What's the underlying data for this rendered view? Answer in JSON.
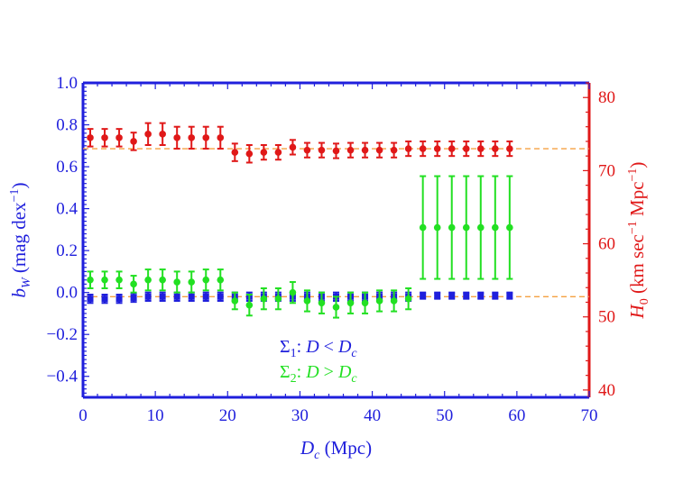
{
  "chart_data": {
    "type": "scatter",
    "xlabel": "D_c (Mpc)",
    "xlabel_parts": {
      "var": "D",
      "sub": "c",
      "rest": " (Mpc)"
    },
    "ylabel_left": "b_W (mag dex^-1)",
    "ylabel_left_parts": {
      "var": "b",
      "sub": "W",
      "rest": " (mag dex",
      "sup": "−1",
      "close": ")"
    },
    "ylabel_right": "H_0 (km sec^-1 Mpc^-1)",
    "ylabel_right_parts": {
      "var": "H",
      "sub": "0",
      "rest1": " (km sec",
      "sup1": "−1",
      "rest2": " Mpc",
      "sup2": "−1",
      "close": ")"
    },
    "xlim": [
      0,
      70
    ],
    "ylim_left": [
      -0.5,
      1.0
    ],
    "ylim_right": [
      39,
      82
    ],
    "x_ticks": [
      0,
      10,
      20,
      30,
      40,
      50,
      60,
      70
    ],
    "x_tick_labels": [
      "0",
      "10",
      "20",
      "30",
      "40",
      "50",
      "60",
      "70"
    ],
    "y_left_ticks": [
      -0.4,
      -0.2,
      0.0,
      0.2,
      0.4,
      0.6,
      0.8,
      1.0
    ],
    "y_left_tick_labels": [
      "−0.4",
      "−0.2",
      "0.0",
      "0.2",
      "0.4",
      "0.6",
      "0.8",
      "1.0"
    ],
    "y_right_ticks": [
      40,
      50,
      60,
      70,
      80
    ],
    "y_right_tick_labels": [
      "40",
      "50",
      "60",
      "70",
      "80"
    ],
    "grid": false,
    "legend_position": "bottom-center",
    "legend": [
      {
        "symbol": "Σ",
        "sub": "1",
        "rest": ": D < D",
        "rest_sub": "c",
        "color": "#1f1fdc"
      },
      {
        "symbol": "Σ",
        "sub": "2",
        "rest": ": D > D",
        "rest_sub": "c",
        "color": "#22e022"
      }
    ],
    "reference_lines": [
      {
        "axis": "left",
        "y": -0.02,
        "color": "#f5a040",
        "dashed": true
      },
      {
        "axis": "right",
        "y": 73.0,
        "color": "#f5a040",
        "dashed": true
      }
    ],
    "series": [
      {
        "name": "Σ₁: D < D_c",
        "axis": "left",
        "color": "#1f1fdc",
        "marker": "square",
        "x": [
          1,
          3,
          5,
          7,
          9,
          11,
          13,
          15,
          17,
          19,
          21,
          23,
          25,
          27,
          29,
          31,
          33,
          35,
          37,
          39,
          41,
          43,
          45,
          47,
          49,
          51,
          53,
          55,
          57,
          59
        ],
        "y": [
          -0.03,
          -0.03,
          -0.03,
          -0.025,
          -0.02,
          -0.02,
          -0.02,
          -0.02,
          -0.02,
          -0.02,
          -0.02,
          -0.02,
          -0.02,
          -0.02,
          -0.02,
          -0.02,
          -0.02,
          -0.02,
          -0.02,
          -0.02,
          -0.02,
          -0.02,
          -0.02,
          -0.015,
          -0.015,
          -0.015,
          -0.015,
          -0.015,
          -0.015,
          -0.015
        ],
        "err": [
          0.02,
          0.02,
          0.02,
          0.02,
          0.02,
          0.02,
          0.02,
          0.02,
          0.02,
          0.02,
          0.02,
          0.02,
          0.02,
          0.02,
          0.02,
          0.02,
          0.02,
          0.02,
          0.02,
          0.02,
          0.02,
          0.02,
          0.02,
          0.015,
          0.015,
          0.015,
          0.015,
          0.015,
          0.015,
          0.015
        ]
      },
      {
        "name": "Σ₂: D > D_c",
        "axis": "left",
        "color": "#22e022",
        "marker": "circle",
        "x": [
          1,
          3,
          5,
          7,
          9,
          11,
          13,
          15,
          17,
          19,
          21,
          23,
          25,
          27,
          29,
          31,
          33,
          35,
          37,
          39,
          41,
          43,
          45,
          47,
          49,
          51,
          53,
          55,
          57,
          59
        ],
        "y": [
          0.06,
          0.06,
          0.06,
          0.04,
          0.06,
          0.06,
          0.05,
          0.05,
          0.06,
          0.06,
          -0.04,
          -0.06,
          -0.03,
          -0.03,
          0.0,
          -0.04,
          -0.05,
          -0.07,
          -0.05,
          -0.05,
          -0.04,
          -0.04,
          -0.03,
          0.31,
          0.31,
          0.31,
          0.31,
          0.31,
          0.31,
          0.31
        ],
        "err": [
          0.04,
          0.04,
          0.04,
          0.04,
          0.05,
          0.05,
          0.05,
          0.05,
          0.05,
          0.05,
          0.04,
          0.05,
          0.05,
          0.05,
          0.05,
          0.05,
          0.05,
          0.05,
          0.05,
          0.05,
          0.05,
          0.05,
          0.05,
          0.245,
          0.245,
          0.245,
          0.245,
          0.245,
          0.245,
          0.245
        ]
      },
      {
        "name": "H_0",
        "axis": "right",
        "color": "#e01818",
        "marker": "circle",
        "x": [
          1,
          3,
          5,
          7,
          9,
          11,
          13,
          15,
          17,
          19,
          21,
          23,
          25,
          27,
          29,
          31,
          33,
          35,
          37,
          39,
          41,
          43,
          45,
          47,
          49,
          51,
          53,
          55,
          57,
          59
        ],
        "y": [
          74.5,
          74.5,
          74.5,
          74.0,
          75.0,
          75.0,
          74.5,
          74.5,
          74.5,
          74.5,
          72.5,
          72.3,
          72.5,
          72.5,
          73.2,
          72.8,
          72.8,
          72.7,
          72.8,
          72.8,
          72.8,
          72.8,
          73.0,
          73.0,
          73.0,
          73.0,
          73.0,
          73.0,
          73.0,
          73.0
        ],
        "err": [
          1.2,
          1.2,
          1.2,
          1.2,
          1.5,
          1.5,
          1.5,
          1.5,
          1.5,
          1.5,
          1.2,
          1.2,
          1.0,
          1.0,
          1.0,
          1.0,
          1.0,
          1.0,
          1.0,
          1.0,
          1.0,
          1.0,
          1.0,
          1.0,
          1.0,
          1.0,
          1.0,
          1.0,
          1.0,
          1.0
        ]
      }
    ]
  }
}
